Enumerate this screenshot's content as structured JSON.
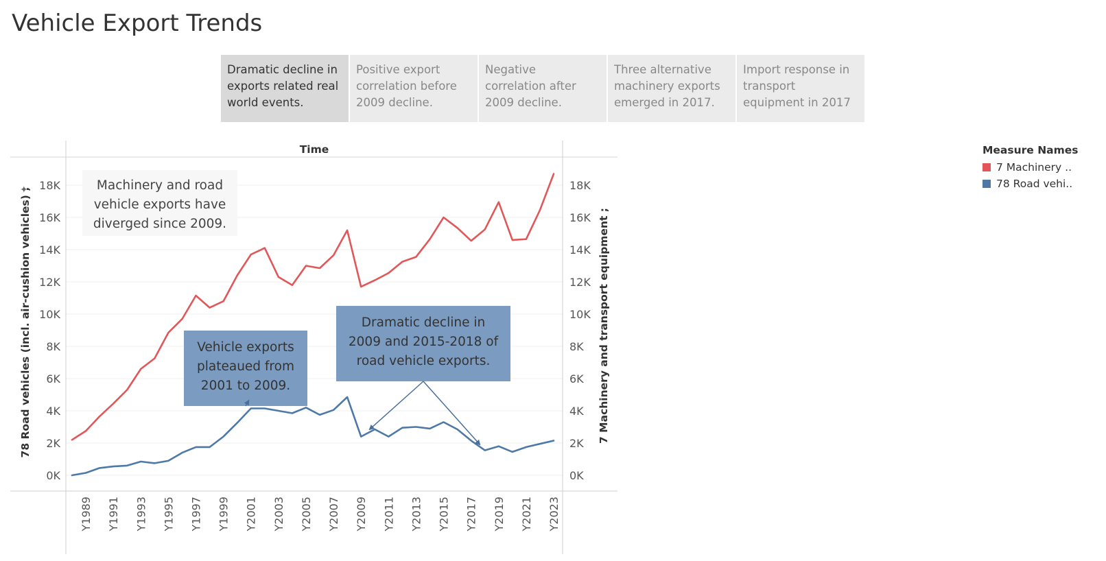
{
  "page": {
    "title": "Vehicle Export Trends",
    "tabs": [
      {
        "label": "Dramatic decline in exports related real world events.",
        "lines": [
          "Dramatic decline in",
          "exports related real",
          "world events."
        ],
        "active": true
      },
      {
        "label": "Positive export correlation before 2009 decline.",
        "lines": [
          "Positive export",
          "correlation before",
          "2009 decline."
        ],
        "active": false
      },
      {
        "label": "Negative correlation after 2009 decline.",
        "lines": [
          "Negative",
          "correlation after",
          "2009 decline."
        ],
        "active": false
      },
      {
        "label": "Three alternative machinery exports emerged in 2017.",
        "lines": [
          "Three alternative",
          "machinery exports",
          "emerged in 2017."
        ],
        "active": false
      },
      {
        "label": "Import response in transport equipment in 2017",
        "lines": [
          "Import response in",
          "transport",
          "equipment in 2017"
        ],
        "active": false
      }
    ]
  },
  "legend": {
    "title": "Measure Names",
    "items": [
      {
        "label": "7 Machinery ..",
        "color": "#e15759"
      },
      {
        "label": "78 Road vehi..",
        "color": "#4e79a7"
      }
    ]
  },
  "chart_data": {
    "type": "line",
    "title": "Time",
    "xlabel": "",
    "ylabel_left": "78 Road vehicles (incl. air-cushion vehicles) ;",
    "ylabel_right": "7 Machinery and transport equipment ;",
    "x": [
      "Y1988",
      "Y1989",
      "Y1990",
      "Y1991",
      "Y1992",
      "Y1993",
      "Y1994",
      "Y1995",
      "Y1996",
      "Y1997",
      "Y1998",
      "Y1999",
      "Y2000",
      "Y2001",
      "Y2002",
      "Y2003",
      "Y2004",
      "Y2005",
      "Y2006",
      "Y2007",
      "Y2008",
      "Y2009",
      "Y2010",
      "Y2011",
      "Y2012",
      "Y2013",
      "Y2014",
      "Y2015",
      "Y2016",
      "Y2017",
      "Y2018",
      "Y2019",
      "Y2020",
      "Y2021",
      "Y2022",
      "Y2023"
    ],
    "x_tick_labels": [
      "Y1989",
      "Y1991",
      "Y1993",
      "Y1995",
      "Y1997",
      "Y1999",
      "Y2001",
      "Y2003",
      "Y2005",
      "Y2007",
      "Y2009",
      "Y2011",
      "Y2013",
      "Y2015",
      "Y2017",
      "Y2019",
      "Y2021",
      "Y2023"
    ],
    "y_ticks": [
      0,
      2000,
      4000,
      6000,
      8000,
      10000,
      12000,
      14000,
      16000,
      18000
    ],
    "y_tick_labels": [
      "0K",
      "2K",
      "4K",
      "6K",
      "8K",
      "10K",
      "12K",
      "14K",
      "16K",
      "18K"
    ],
    "ylim": [
      0,
      19200
    ],
    "grid": true,
    "legend_position": "right",
    "series": [
      {
        "name": "7 Machinery ..",
        "color": "#e15759",
        "values": [
          2200,
          2750,
          3650,
          4450,
          5300,
          6600,
          7250,
          8850,
          9700,
          11150,
          10400,
          10800,
          12400,
          13700,
          14100,
          12300,
          11800,
          13000,
          12850,
          13650,
          15200,
          11700,
          12100,
          12550,
          13250,
          13550,
          14650,
          16000,
          15350,
          14550,
          15250,
          16950,
          14600,
          14650,
          16450,
          18700
        ]
      },
      {
        "name": "78 Road vehi..",
        "color": "#4e79a7",
        "values": [
          0,
          150,
          450,
          550,
          600,
          850,
          750,
          900,
          1400,
          1750,
          1750,
          2400,
          3250,
          4150,
          4150,
          4000,
          3850,
          4200,
          3750,
          4050,
          4850,
          2400,
          2850,
          2400,
          2950,
          3000,
          2900,
          3300,
          2850,
          2150,
          1550,
          1800,
          1450,
          1750,
          1950,
          2150
        ]
      }
    ],
    "annotations": [
      {
        "text": "Machinery and road vehicle exports have diverged since 2009.",
        "lines": [
          "Machinery and road",
          "vehicle exports have",
          "diverged since 2009."
        ]
      },
      {
        "text": "Vehicle exports plateaued from 2001 to 2009.",
        "lines": [
          "Vehicle exports",
          "plateaued from",
          "2001 to 2009."
        ]
      },
      {
        "text": "Dramatic decline in 2009 and 2015-2018 of road vehicle exports.",
        "lines": [
          "Dramatic decline in",
          "2009 and 2015-2018 of",
          "road vehicle exports."
        ]
      }
    ]
  }
}
